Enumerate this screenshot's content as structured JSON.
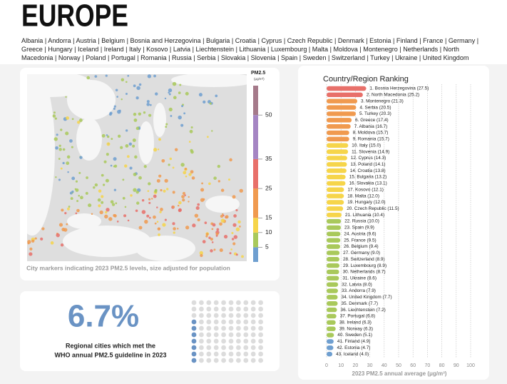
{
  "title": "EUROPE",
  "country_list": "Albania | Andorra | Austria | Belgium | Bosnia and Herzegovina | Bulgaria | Croatia | Cyprus | Czech Republic | Denmark | Estonia | Finland | France | Germany | Greece | Hungary | Iceland | Ireland | Italy | Kosovo | Latvia | Liechtenstein | Lithuania | Luxembourg | Malta | Moldova | Montenegro | Netherlands | North Macedonia | Norway | Poland | Portugal | Romania | Russia | Serbia | Slovakia | Slovenia | Spain | Sweden | Switzerland | Turkey | Ukraine | United Kingdom",
  "map": {
    "legend_title": "PM2.5",
    "legend_unit": "(μg/m³)",
    "scale": {
      "lim": [
        0,
        60
      ],
      "ticks": [
        5,
        10,
        15,
        25,
        35,
        50
      ],
      "colors": [
        "#6f9fd0",
        "#a9c95b",
        "#f6d54a",
        "#f09a4f",
        "#e8706a",
        "#a585c3",
        "#a57a8a"
      ]
    },
    "caption": "City markers indicating 2023 PM2.5 levels, size adjusted for population"
  },
  "stat": {
    "value": 6.7,
    "label": "6.7%",
    "caption_lines": [
      "Regional cities which met the",
      "WHO annual PM2.5 guideline in 2023"
    ]
  },
  "chart_data": {
    "type": "bar",
    "orientation": "horizontal",
    "title": "Country/Region Ranking",
    "categories": [
      "1. Bosnia Herzegovina (27.5)",
      "2. North Macedonia (25.2)",
      "3. Montenegro (21.3)",
      "4. Serbia (20.5)",
      "5. Turkey (20.3)",
      "6. Greece (17.4)",
      "7. Albania (16.7)",
      "8. Moldova (15.7)",
      "9. Romania (15.7)",
      "10. Italy (15.0)",
      "11. Slovenia (14.9)",
      "12. Cyprus (14.3)",
      "13. Poland (14.1)",
      "14. Croatia (13.8)",
      "15. Bulgaria (13.2)",
      "16. Slovakia (13.1)",
      "17. Kosovo (12.1)",
      "18. Malta (12.0)",
      "19. Hungary (12.0)",
      "20. Czech Republic (11.5)",
      "21. Lithuania (10.4)",
      "22. Russia (10.0)",
      "23. Spain (9.9)",
      "24. Austria (9.6)",
      "25. France (9.5)",
      "26. Belgium (9.4)",
      "27. Germany (9.0)",
      "28. Switzerland (8.9)",
      "29. Luxembourg (8.9)",
      "30. Netherlands (8.7)",
      "31. Ukraine (8.6)",
      "32. Latvia (8.0)",
      "33. Andorra (7.9)",
      "34. United Kingdom (7.7)",
      "35. Denmark (7.7)",
      "36. Liechtenstein (7.2)",
      "37. Portugal (6.8)",
      "38. Ireland (6.3)",
      "39. Norway (6.3)",
      "40. Sweden (5.1)",
      "41. Finland (4.9)",
      "42. Estonia (4.7)",
      "43. Iceland (4.0)"
    ],
    "values": [
      27.5,
      25.2,
      21.3,
      20.5,
      20.3,
      17.4,
      16.7,
      15.7,
      15.7,
      15.0,
      14.9,
      14.3,
      14.1,
      13.8,
      13.2,
      13.1,
      12.1,
      12.0,
      12.0,
      11.5,
      10.4,
      10.0,
      9.9,
      9.6,
      9.5,
      9.4,
      9.0,
      8.9,
      8.9,
      8.7,
      8.6,
      8.0,
      7.9,
      7.7,
      7.7,
      7.2,
      6.8,
      6.3,
      6.3,
      5.1,
      4.9,
      4.7,
      4.0
    ],
    "xlim": [
      0,
      100
    ],
    "xticks": [
      0,
      10,
      20,
      30,
      40,
      50,
      60,
      70,
      80,
      90,
      100
    ],
    "xlabel": "2023 PM2.5 annual average (μg/m³)",
    "grid": true
  }
}
